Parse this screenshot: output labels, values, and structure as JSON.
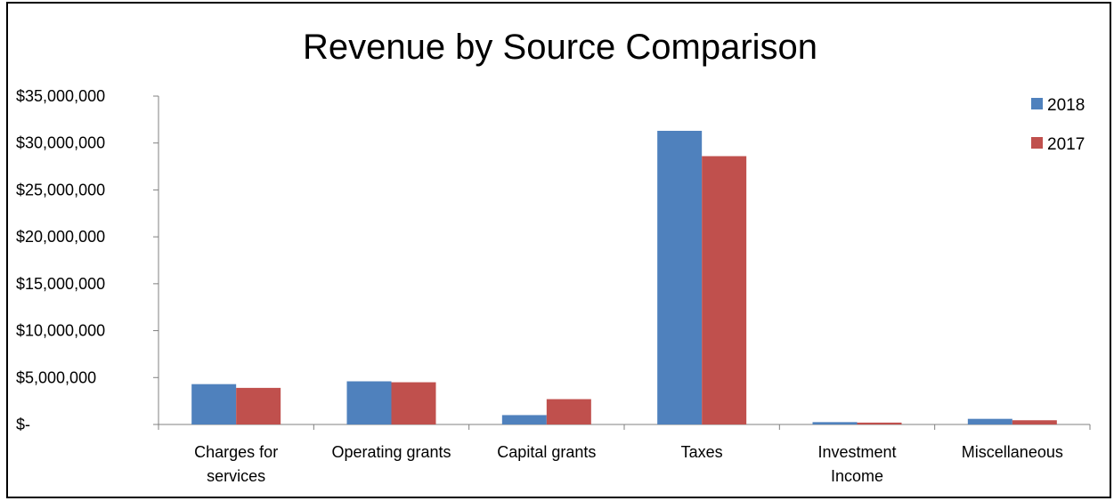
{
  "chart_data": {
    "type": "bar",
    "title": "Revenue by Source Comparison",
    "xlabel": "",
    "ylabel": "",
    "categories": [
      [
        "Charges for",
        "services"
      ],
      [
        "Operating grants"
      ],
      [
        "Capital grants"
      ],
      [
        "Taxes"
      ],
      [
        "Investment",
        "Income"
      ],
      [
        "Miscellaneous"
      ]
    ],
    "series": [
      {
        "name": "2018",
        "color": "#4f81bd",
        "values": [
          4300000,
          4600000,
          1000000,
          31300000,
          250000,
          600000
        ]
      },
      {
        "name": "2017",
        "color": "#c0504d",
        "values": [
          3900000,
          4500000,
          2700000,
          28600000,
          200000,
          450000
        ]
      }
    ],
    "ylim": [
      0,
      35000000
    ],
    "yticks": [
      0,
      5000000,
      10000000,
      15000000,
      20000000,
      25000000,
      30000000,
      35000000
    ],
    "ytick_labels": [
      "$-",
      "$5,000,000",
      "$10,000,000",
      "$15,000,000",
      "$20,000,000",
      "$25,000,000",
      "$30,000,000",
      "$35,000,000"
    ],
    "grid": false,
    "legend": "top-right"
  }
}
